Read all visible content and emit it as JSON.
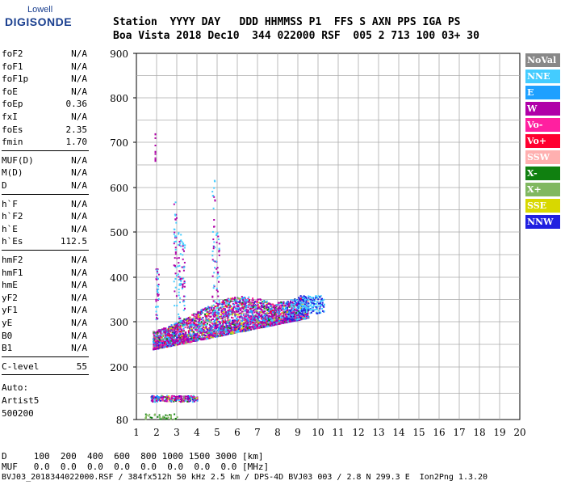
{
  "logo": {
    "line1": "Lowell",
    "line2": "DIGISONDE"
  },
  "header": {
    "row1": "Station  YYYY DAY   DDD HHMMSS P1  FFS S AXN PPS IGA PS",
    "row2": "Boa Vista 2018 Dec10  344 022000 RSF  005 2 713 100 03+ 30"
  },
  "params": {
    "group1": [
      {
        "k": "foF2",
        "v": "N/A"
      },
      {
        "k": "foF1",
        "v": "N/A"
      },
      {
        "k": "foF1p",
        "v": "N/A"
      },
      {
        "k": "foE",
        "v": "N/A"
      },
      {
        "k": "foEp",
        "v": "0.36"
      },
      {
        "k": "fxI",
        "v": "N/A"
      },
      {
        "k": "foEs",
        "v": "2.35"
      },
      {
        "k": "fmin",
        "v": "1.70"
      }
    ],
    "group2": [
      {
        "k": "MUF(D)",
        "v": "N/A"
      },
      {
        "k": "M(D)",
        "v": "N/A"
      },
      {
        "k": "D",
        "v": "N/A"
      }
    ],
    "group3": [
      {
        "k": "h`F",
        "v": "N/A"
      },
      {
        "k": "h`F2",
        "v": "N/A"
      },
      {
        "k": "h`E",
        "v": "N/A"
      },
      {
        "k": "h`Es",
        "v": "112.5"
      }
    ],
    "group4": [
      {
        "k": "hmF2",
        "v": "N/A"
      },
      {
        "k": "hmF1",
        "v": "N/A"
      },
      {
        "k": "hmE",
        "v": "N/A"
      },
      {
        "k": "yF2",
        "v": "N/A"
      },
      {
        "k": "yF1",
        "v": "N/A"
      },
      {
        "k": "yE",
        "v": "N/A"
      },
      {
        "k": "B0",
        "v": "N/A"
      },
      {
        "k": "B1",
        "v": "N/A"
      }
    ],
    "group5": [
      {
        "k": "C-level",
        "v": "55"
      }
    ],
    "auto": [
      "Auto:",
      "Artist5",
      "500200"
    ]
  },
  "legend": [
    {
      "label": "NoVal",
      "color": "#888888"
    },
    {
      "label": "NNE",
      "color": "#44ccff"
    },
    {
      "label": "E",
      "color": "#1ea0ff"
    },
    {
      "label": "W",
      "color": "#b000a8"
    },
    {
      "label": "Vo-",
      "color": "#ff20a0"
    },
    {
      "label": "Vo+",
      "color": "#ff0030"
    },
    {
      "label": "SSW",
      "color": "#ffb0b0"
    },
    {
      "label": "X-",
      "color": "#108010"
    },
    {
      "label": "X+",
      "color": "#80b860"
    },
    {
      "label": "SSE",
      "color": "#d8d800"
    },
    {
      "label": "NNW",
      "color": "#2020e0"
    }
  ],
  "footer": {
    "d_row": "D     100  200  400  600  800 1000 1500 3000 [km]",
    "muf_row": "MUF   0.0  0.0  0.0  0.0  0.0  0.0  0.0  0.0 [MHz]",
    "info_row": "BVJ03_2018344022000.RSF / 384fx512h 50 kHz 2.5 km / DPS-4D BVJ03 003 / 2.8 N 299.3 E  Ion2Png 1.3.20"
  },
  "chart_data": {
    "type": "scatter",
    "xlim": [
      1,
      20
    ],
    "ylim": [
      80,
      900
    ],
    "x_ticks": [
      1,
      2,
      3,
      4,
      5,
      6,
      7,
      8,
      9,
      10,
      11,
      12,
      13,
      14,
      15,
      16,
      17,
      18,
      19,
      20
    ],
    "y_ticks": [
      80,
      200,
      300,
      400,
      500,
      600,
      700,
      800,
      900
    ],
    "grid": true,
    "regions": [
      {
        "desc": "F trace main band",
        "x": [
          1.8,
          9.5
        ],
        "y_base": [
          240,
          310
        ],
        "y_spread": [
          40,
          130
        ]
      },
      {
        "desc": "Es trace",
        "x": [
          1.7,
          4.0
        ],
        "y": [
          120,
          140
        ]
      },
      {
        "desc": "low echoes",
        "x": [
          1.5,
          3.0
        ],
        "y": [
          80,
          95
        ]
      }
    ]
  }
}
